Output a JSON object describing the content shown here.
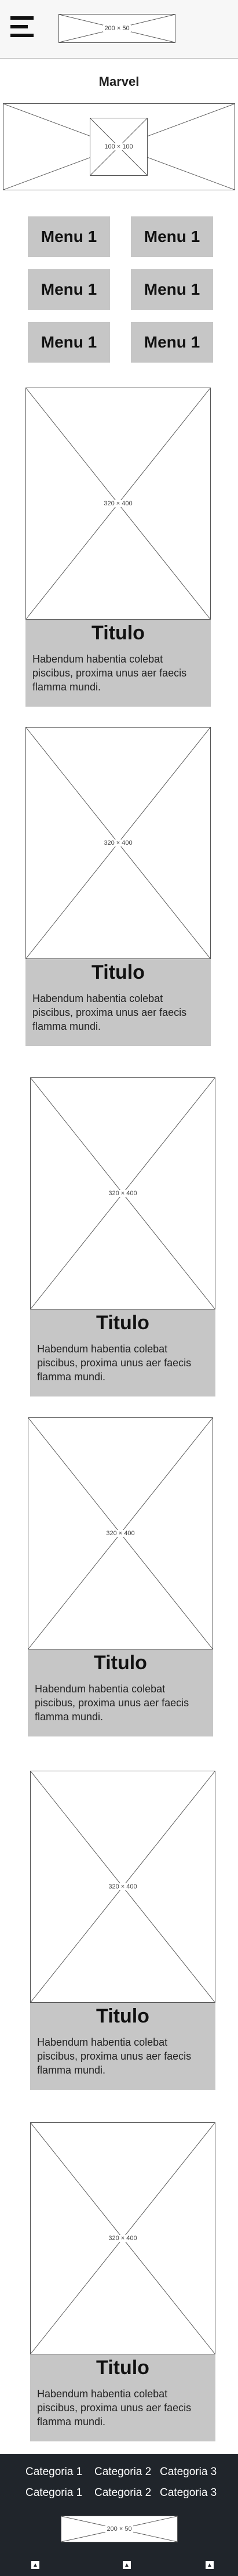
{
  "header": {
    "menu_icon": "hamburger-icon",
    "logo_placeholder": "200 × 50"
  },
  "brand": {
    "name": "Marvel",
    "hero_placeholder": "100 × 100"
  },
  "menu": {
    "items": [
      "Menu 1",
      "Menu 1",
      "Menu 1",
      "Menu 1",
      "Menu 1",
      "Menu 1"
    ]
  },
  "cards": [
    {
      "image": "320 × 400",
      "title": "Titulo",
      "text": "Habendum habentia colebat piscibus, proxima unus aer faecis flamma mundi."
    },
    {
      "image": "320 × 400",
      "title": "Titulo",
      "text": "Habendum habentia colebat piscibus, proxima unus aer faecis flamma mundi."
    },
    {
      "image": "320 × 400",
      "title": "Titulo",
      "text": "Habendum habentia colebat piscibus, proxima unus aer faecis flamma mundi."
    },
    {
      "image": "320 × 400",
      "title": "Titulo",
      "text": "Habendum habentia colebat piscibus, proxima unus aer faecis flamma mundi."
    },
    {
      "image": "320 × 400",
      "title": "Titulo",
      "text": "Habendum habentia colebat piscibus, proxima unus aer faecis flamma mundi."
    },
    {
      "image": "320 × 400",
      "title": "Titulo",
      "text": "Habendum habentia colebat piscibus, proxima unus aer faecis flamma mundi."
    }
  ],
  "footer": {
    "row1": [
      "Categoria 1",
      "Categoria 2",
      "Categoria 3"
    ],
    "row2": [
      "Categoria 1",
      "Categoria 2",
      "Categoria 3"
    ],
    "logo_placeholder": "200 × 50",
    "button_icon": "caret-up-icon"
  },
  "colors": {
    "header_bg": "#f7f7f7",
    "block_gray": "#c6c6c6",
    "footer_bg": "#20252b"
  }
}
